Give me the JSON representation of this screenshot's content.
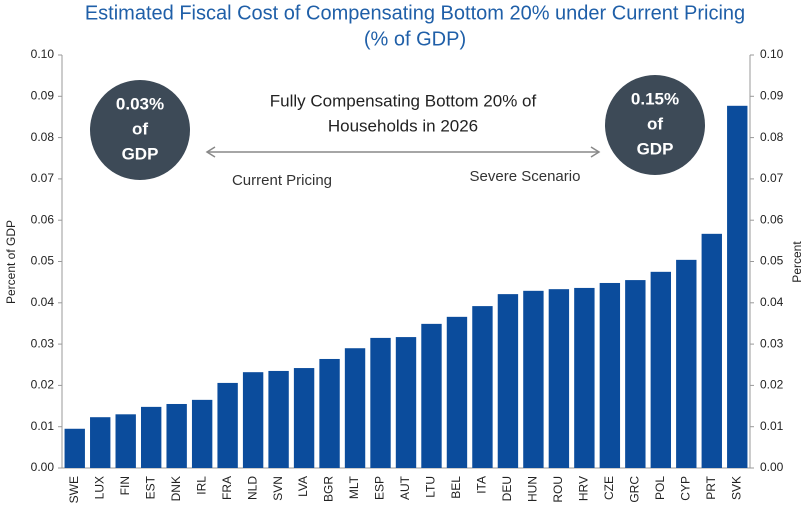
{
  "chart_data": {
    "type": "bar",
    "title": [
      "Estimated Fiscal Cost of Compensating Bottom 20% under Current Pricing",
      "(% of GDP)"
    ],
    "y_label": "Percent of GDP",
    "y2_label": "Percent",
    "annotations": {
      "left_circle": [
        "0.03%",
        "of",
        "GDP"
      ],
      "right_circle": [
        "0.15%",
        "of",
        "GDP"
      ],
      "center": [
        "Fully Compensating Bottom 20% of",
        "Households in 2026"
      ],
      "left_label": "Current Pricing",
      "right_label": "Severe Scenario"
    },
    "categories": [
      "SWE",
      "LUX",
      "FIN",
      "EST",
      "DNK",
      "IRL",
      "FRA",
      "NLD",
      "SVN",
      "LVA",
      "BGR",
      "MLT",
      "ESP",
      "AUT",
      "LTU",
      "BEL",
      "ITA",
      "DEU",
      "HUN",
      "ROU",
      "HRV",
      "CZE",
      "GRC",
      "POL",
      "CYP",
      "PRT",
      "SVK"
    ],
    "values": [
      0.0095,
      0.0123,
      0.013,
      0.0148,
      0.0155,
      0.0165,
      0.0206,
      0.0232,
      0.0235,
      0.0242,
      0.0264,
      0.029,
      0.0315,
      0.0317,
      0.0349,
      0.0366,
      0.0392,
      0.0421,
      0.0429,
      0.0433,
      0.0436,
      0.0448,
      0.0455,
      0.0475,
      0.0504,
      0.0567,
      0.0877
    ],
    "color": "#0b4c9c",
    "ylim": [
      0,
      0.1
    ],
    "yticks": [
      {
        "value": 0,
        "label": "0.00"
      },
      {
        "value": 0.01,
        "label": "0.01"
      },
      {
        "value": 0.02,
        "label": "0.02"
      },
      {
        "value": 0.03,
        "label": "0.03"
      },
      {
        "value": 0.04,
        "label": "0.04"
      },
      {
        "value": 0.05,
        "label": "0.05"
      },
      {
        "value": 0.06,
        "label": "0.06"
      },
      {
        "value": 0.07,
        "label": "0.07"
      },
      {
        "value": 0.08,
        "label": "0.08"
      },
      {
        "value": 0.09,
        "label": "0.09"
      },
      {
        "value": 0.1,
        "label": "0.10"
      }
    ],
    "y2lim": [
      0,
      0.1
    ],
    "y2ticks": [
      {
        "value": 0,
        "label": "0.00"
      },
      {
        "value": 0.01,
        "label": "0.01"
      },
      {
        "value": 0.02,
        "label": "0.02"
      },
      {
        "value": 0.03,
        "label": "0.03"
      },
      {
        "value": 0.04,
        "label": "0.04"
      },
      {
        "value": 0.05,
        "label": "0.05"
      },
      {
        "value": 0.06,
        "label": "0.06"
      },
      {
        "value": 0.07,
        "label": "0.07"
      },
      {
        "value": 0.08,
        "label": "0.08"
      },
      {
        "value": 0.09,
        "label": "0.09"
      },
      {
        "value": 0.1,
        "label": "0.10"
      }
    ],
    "grid": false
  }
}
